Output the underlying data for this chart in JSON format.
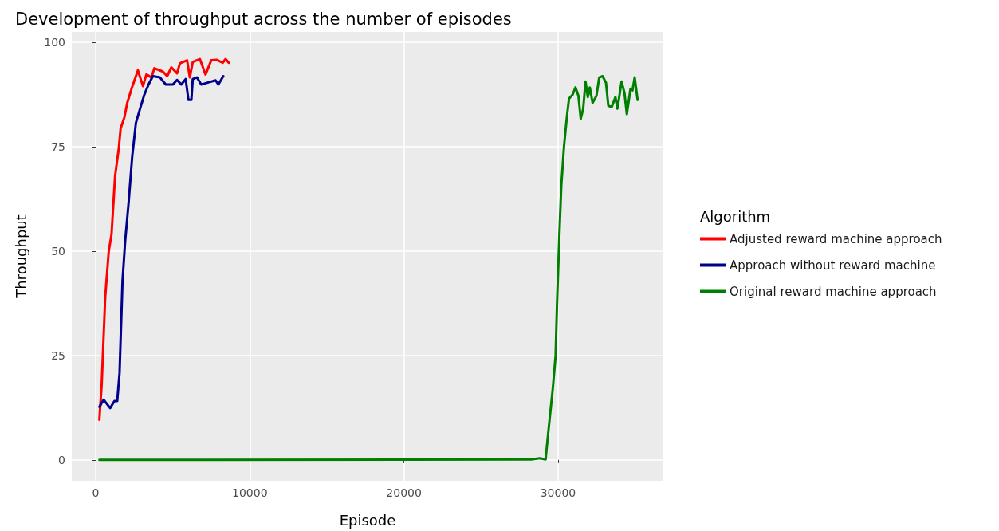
{
  "chart_data": {
    "type": "line",
    "title": "Development of throughput across the number of episodes",
    "xlabel": "Episode",
    "ylabel": "Throughput",
    "legend_title": "Algorithm",
    "legend": "right",
    "grid": true,
    "xlim": [
      -1550,
      36830
    ],
    "xticks": [
      0,
      10000,
      20000,
      30000
    ],
    "ylim": [
      -5,
      102.5
    ],
    "yticks": [
      0,
      25,
      50,
      75,
      100
    ],
    "series": [
      {
        "name": "Adjusted reward machine approach",
        "color": "#ff0000",
        "x": [
          240,
          390,
          620,
          850,
          1030,
          1260,
          1500,
          1620,
          1860,
          2050,
          2330,
          2740,
          3070,
          3290,
          3620,
          3810,
          4360,
          4640,
          4910,
          5280,
          5470,
          5930,
          6110,
          6300,
          6760,
          7130,
          7500,
          7870,
          8240,
          8430,
          8640
        ],
        "values": [
          9.6,
          18,
          39,
          50,
          54,
          68,
          74.6,
          79.4,
          82,
          85.5,
          88.9,
          93.3,
          89.5,
          92.3,
          91.6,
          93.8,
          93,
          91.9,
          94,
          92.6,
          95,
          95.7,
          91.6,
          95.3,
          96,
          92.3,
          95.7,
          95.8,
          95.1,
          96,
          95.1
        ]
      },
      {
        "name": "Approach without reward machine",
        "color": "#00008b",
        "x": [
          240,
          520,
          940,
          1220,
          1400,
          1550,
          1740,
          1910,
          2140,
          2370,
          2610,
          2880,
          3160,
          3430,
          3710,
          4170,
          4550,
          5010,
          5280,
          5560,
          5840,
          6020,
          6210,
          6300,
          6570,
          6850,
          7310,
          7780,
          7960,
          8280
        ],
        "values": [
          12.7,
          14.4,
          12.4,
          14.1,
          14.1,
          20.8,
          42.7,
          52.2,
          61.7,
          72.6,
          80.7,
          84.1,
          87.5,
          89.9,
          91.9,
          91.6,
          89.9,
          89.9,
          91,
          89.9,
          91.2,
          86.2,
          86.2,
          91.2,
          91.6,
          89.9,
          90.4,
          90.9,
          89.9,
          91.9
        ]
      },
      {
        "name": "Original reward machine approach",
        "color": "#008000",
        "x": [
          240,
          28270,
          28810,
          29190,
          29380,
          29650,
          29840,
          29930,
          30080,
          30210,
          30390,
          30570,
          30710,
          30950,
          31130,
          31320,
          31470,
          31630,
          31780,
          31930,
          32060,
          32240,
          32490,
          32670,
          32890,
          33110,
          33260,
          33480,
          33720,
          33850,
          34120,
          34310,
          34460,
          34700,
          34830,
          34970,
          35160
        ],
        "values": [
          0,
          0.1,
          0.4,
          0.1,
          7.2,
          16.8,
          25,
          37.2,
          53.5,
          65.7,
          75.3,
          82.1,
          86.5,
          87.5,
          89.2,
          87.2,
          81.7,
          84.1,
          90.6,
          86.9,
          89.2,
          85.5,
          87.2,
          91.6,
          91.9,
          90.3,
          84.8,
          84.5,
          86.9,
          84.1,
          90.6,
          87.8,
          82.8,
          88.9,
          88.5,
          91.6,
          86.2
        ]
      }
    ]
  }
}
